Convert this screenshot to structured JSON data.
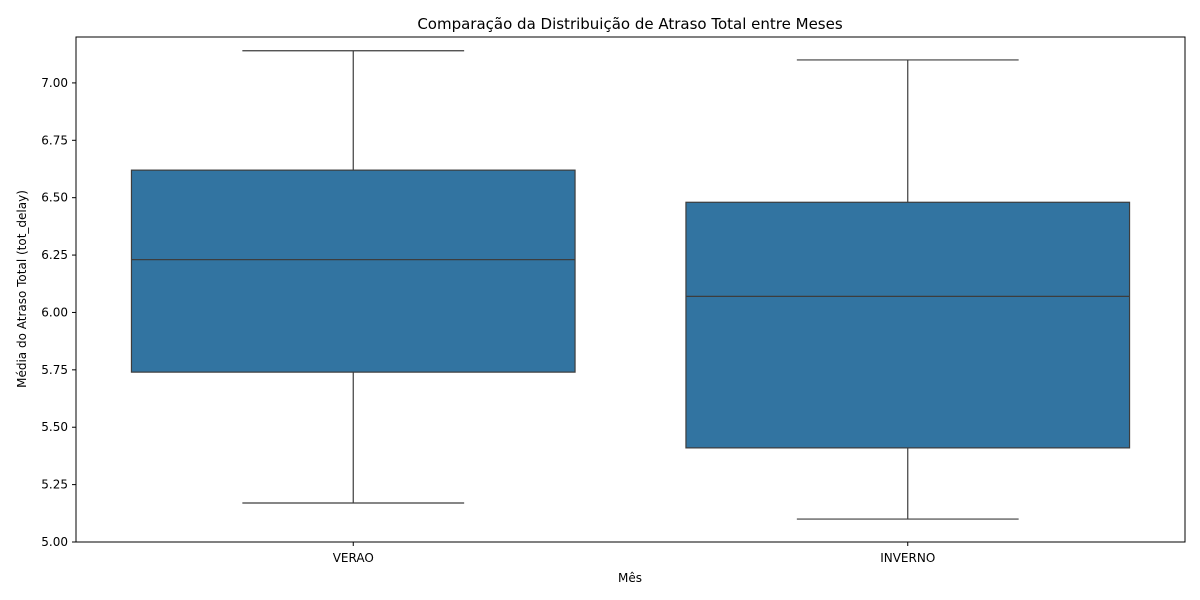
{
  "chart_data": {
    "type": "box",
    "title": "Comparação da Distribuição de Atraso Total entre Meses",
    "xlabel": "Mês",
    "ylabel": "Média do Atraso Total (tot_delay)",
    "ylim": [
      5.0,
      7.2
    ],
    "yticks": [
      "5.00",
      "5.25",
      "5.50",
      "5.75",
      "6.00",
      "6.25",
      "6.50",
      "6.75",
      "7.00"
    ],
    "categories": [
      "VERAO",
      "INVERNO"
    ],
    "boxes": [
      {
        "category": "VERAO",
        "whisker_low": 5.17,
        "q1": 5.74,
        "median": 6.23,
        "q3": 6.62,
        "whisker_high": 7.14
      },
      {
        "category": "INVERNO",
        "whisker_low": 5.1,
        "q1": 5.41,
        "median": 6.07,
        "q3": 6.48,
        "whisker_high": 7.1
      }
    ],
    "box_color": "#3274a1",
    "line_color": "#3d3d3d",
    "grid": false
  }
}
